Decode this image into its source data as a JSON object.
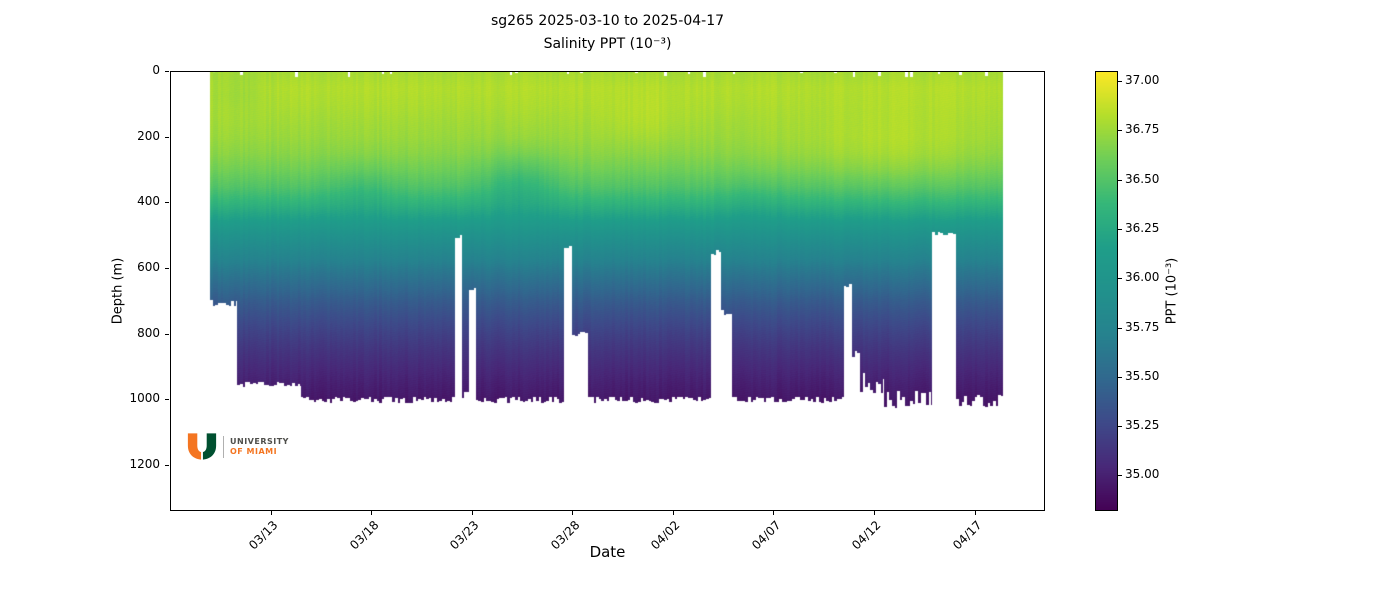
{
  "chart_data": {
    "type": "heatmap",
    "colormap": "viridis",
    "title": "sg265 2025-03-10 to 2025-04-17",
    "subtitle": "Salinity PPT (10⁻³)",
    "xlabel": "Date",
    "ylabel": "Depth (m)",
    "x": {
      "tick_labels": [
        "03/13",
        "03/18",
        "03/23",
        "03/28",
        "04/02",
        "04/07",
        "04/12",
        "04/17"
      ],
      "tick_days": [
        3,
        8,
        13,
        18,
        23,
        28,
        33,
        38
      ],
      "domain_days": [
        -2.0,
        41.5
      ],
      "data_day_range": [
        0.0,
        39.4
      ]
    },
    "y": {
      "tick_values": [
        0,
        200,
        400,
        600,
        800,
        1000,
        1200
      ],
      "max_depth": 1340
    },
    "colorbar": {
      "label": "PPT (10⁻³)",
      "tick_values": [
        37.0,
        36.75,
        36.5,
        36.25,
        36.0,
        35.75,
        35.5,
        35.25,
        35.0
      ],
      "tick_labels": [
        "37.00",
        "36.75",
        "36.50",
        "36.25",
        "36.00",
        "35.75",
        "35.50",
        "35.25",
        "35.00"
      ],
      "vmin": 34.82,
      "vmax": 37.05
    },
    "salinity_profile": {
      "depths": [
        0,
        50,
        100,
        150,
        200,
        250,
        300,
        350,
        400,
        450,
        500,
        550,
        600,
        650,
        700,
        750,
        800,
        850,
        900,
        950,
        1000,
        1050,
        1100
      ],
      "values": [
        36.78,
        36.82,
        36.8,
        36.77,
        36.74,
        36.69,
        36.61,
        36.5,
        36.35,
        36.16,
        35.96,
        35.8,
        35.65,
        35.52,
        35.4,
        35.3,
        35.21,
        35.13,
        35.06,
        35.0,
        34.95,
        34.92,
        34.9
      ]
    },
    "coverage_envelope": [
      {
        "t0": 0.0,
        "t1": 1.35,
        "max_depth": 705,
        "jitter": 10
      },
      {
        "t0": 1.35,
        "t1": 4.5,
        "max_depth": 952,
        "jitter": 8
      },
      {
        "t0": 4.5,
        "t1": 12.15,
        "max_depth": 1000,
        "jitter": 10
      },
      {
        "t0": 12.15,
        "t1": 12.5,
        "max_depth": 505,
        "jitter": 8
      },
      {
        "t0": 12.5,
        "t1": 12.85,
        "max_depth": 985,
        "jitter": 10
      },
      {
        "t0": 12.85,
        "t1": 13.2,
        "max_depth": 660,
        "jitter": 10
      },
      {
        "t0": 13.2,
        "t1": 17.6,
        "max_depth": 1000,
        "jitter": 10
      },
      {
        "t0": 17.6,
        "t1": 18.0,
        "max_depth": 535,
        "jitter": 8
      },
      {
        "t0": 18.0,
        "t1": 18.8,
        "max_depth": 800,
        "jitter": 12
      },
      {
        "t0": 18.8,
        "t1": 24.9,
        "max_depth": 1000,
        "jitter": 10
      },
      {
        "t0": 24.9,
        "t1": 25.4,
        "max_depth": 550,
        "jitter": 10
      },
      {
        "t0": 25.4,
        "t1": 25.95,
        "max_depth": 735,
        "jitter": 10
      },
      {
        "t0": 25.95,
        "t1": 31.5,
        "max_depth": 1000,
        "jitter": 10
      },
      {
        "t0": 31.5,
        "t1": 31.9,
        "max_depth": 655,
        "jitter": 10
      },
      {
        "t0": 31.9,
        "t1": 32.3,
        "max_depth": 860,
        "jitter": 12
      },
      {
        "t0": 32.3,
        "t1": 33.5,
        "max_depth": 950,
        "jitter": 35
      },
      {
        "t0": 33.5,
        "t1": 35.9,
        "max_depth": 1000,
        "jitter": 28
      },
      {
        "t0": 35.9,
        "t1": 37.1,
        "max_depth": 495,
        "jitter": 8
      },
      {
        "t0": 37.1,
        "t1": 39.4,
        "max_depth": 1000,
        "jitter": 25
      }
    ],
    "anomalies": [
      {
        "day": 15.3,
        "day_sigma": 1.8,
        "depth": 340,
        "depth_sigma": 95,
        "amplitude": -0.16
      },
      {
        "day": 7.5,
        "day_sigma": 1.6,
        "depth": 360,
        "depth_sigma": 80,
        "amplitude": -0.08
      },
      {
        "day": 33.5,
        "day_sigma": 5.0,
        "depth": 250,
        "depth_sigma": 120,
        "amplitude": 0.09
      },
      {
        "day": 21.5,
        "day_sigma": 2.0,
        "depth": 150,
        "depth_sigma": 80,
        "amplitude": 0.05
      },
      {
        "day": 1.2,
        "day_sigma": 1.5,
        "depth": 60,
        "depth_sigma": 60,
        "amplitude": -0.06
      },
      {
        "day": 27.0,
        "day_sigma": 1.5,
        "depth": 400,
        "depth_sigma": 80,
        "amplitude": -0.05
      }
    ]
  },
  "logo": {
    "line1": "UNIVERSITY",
    "line2": "OF MIAMI",
    "colors": {
      "orange": "#f47521",
      "green": "#005030",
      "text_dark": "#4f4f4b"
    }
  }
}
